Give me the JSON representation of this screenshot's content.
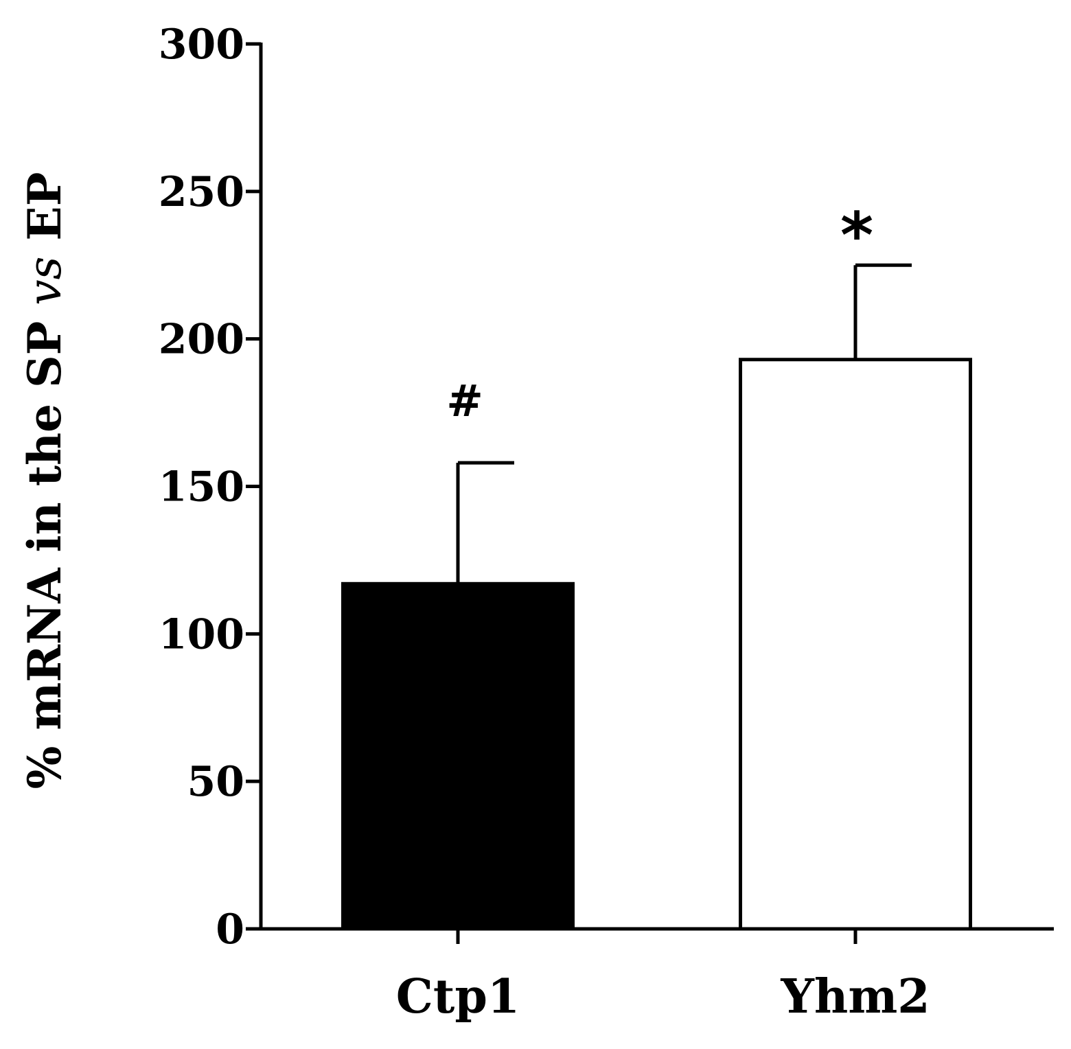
{
  "chart_data": {
    "type": "bar",
    "title": "",
    "xlabel": "",
    "ylabel": {
      "prefix": "% mRNA in the SP ",
      "italic": "vs",
      "suffix": " EP"
    },
    "ylim": [
      0,
      300
    ],
    "yticks": [
      0,
      50,
      100,
      150,
      200,
      250,
      300
    ],
    "ytick_labels": [
      "0",
      "50",
      "100",
      "150",
      "200",
      "250",
      "300"
    ],
    "grid": false,
    "legend": "none",
    "categories": [
      "Ctp1",
      "Yhm2"
    ],
    "values": [
      117,
      193
    ],
    "error_upper": [
      158,
      225
    ],
    "annotations": [
      "#",
      "*"
    ],
    "bar_fill_colors": [
      "#000000",
      "#ffffff"
    ],
    "bar_edge_color": "#000000"
  }
}
